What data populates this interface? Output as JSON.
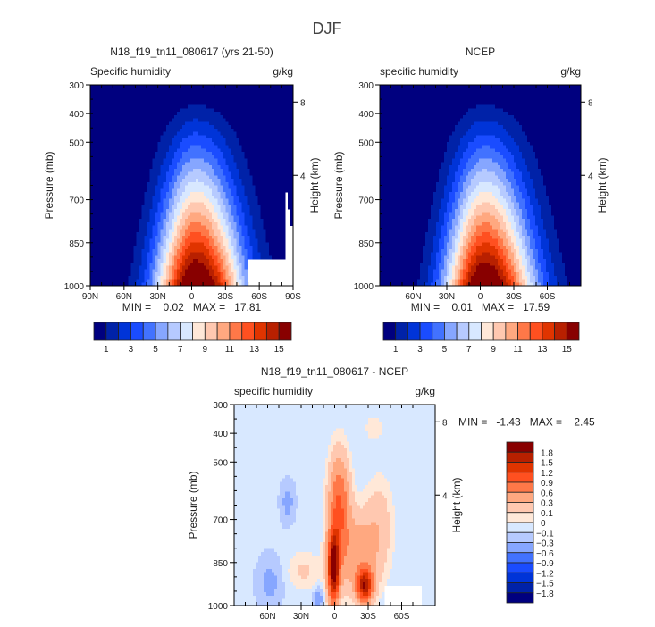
{
  "chart_data": {
    "type": "heatmap",
    "title": "DJF",
    "units": "g/kg",
    "panels": [
      {
        "id": "model",
        "title": "N18_f19_tn11_080617 (yrs 21-50)",
        "subtitle": "Specific humidity",
        "units": "g/kg",
        "ylabel": "Pressure (mb)",
        "y2label": "Height (km)",
        "yticks": [
          300,
          400,
          500,
          700,
          850,
          1000
        ],
        "y2ticks": [
          {
            "label": "8",
            "p": 360
          },
          {
            "label": "4",
            "p": 615
          }
        ],
        "xticks": [
          {
            "lat": 90,
            "label": "90N"
          },
          {
            "lat": 60,
            "label": "60N"
          },
          {
            "lat": 30,
            "label": "30N"
          },
          {
            "lat": 0,
            "label": "0"
          },
          {
            "lat": -30,
            "label": "30S"
          },
          {
            "lat": -60,
            "label": "60S"
          },
          {
            "lat": -90,
            "label": "90S"
          }
        ],
        "xlim": [
          90,
          -90
        ],
        "ylim": [
          300,
          1000
        ],
        "stats": "MIN =    0.02   MAX =   17.81",
        "min": 0.02,
        "max": 17.81
      },
      {
        "id": "obs",
        "title": "NCEP",
        "subtitle": "specific humidity",
        "units": "g/kg",
        "ylabel": "Pressure (mb)",
        "y2label": "Height (km)",
        "yticks": [
          300,
          400,
          500,
          700,
          850,
          1000
        ],
        "y2ticks": [
          {
            "label": "8",
            "p": 360
          },
          {
            "label": "4",
            "p": 615
          }
        ],
        "xticks": [
          {
            "lat": 60,
            "label": "60N"
          },
          {
            "lat": 30,
            "label": "30N"
          },
          {
            "lat": 0,
            "label": "0"
          },
          {
            "lat": -30,
            "label": "30S"
          },
          {
            "lat": -60,
            "label": "60S"
          }
        ],
        "xlim": [
          90,
          -90
        ],
        "ylim": [
          300,
          1000
        ],
        "stats": "MIN =    0.01   MAX =   17.59",
        "min": 0.01,
        "max": 17.59
      },
      {
        "id": "diff",
        "title": "N18_f19_tn11_080617 - NCEP",
        "subtitle": "specific humidity",
        "units": "g/kg",
        "ylabel": "Pressure (mb)",
        "y2label": "Height (km)",
        "yticks": [
          300,
          400,
          500,
          700,
          850,
          1000
        ],
        "y2ticks": [
          {
            "label": "8",
            "p": 360
          },
          {
            "label": "4",
            "p": 615
          }
        ],
        "xticks": [
          {
            "lat": 60,
            "label": "60N"
          },
          {
            "lat": 30,
            "label": "30N"
          },
          {
            "lat": 0,
            "label": "0"
          },
          {
            "lat": -30,
            "label": "30S"
          },
          {
            "lat": -60,
            "label": "60S"
          }
        ],
        "xlim": [
          90,
          -90
        ],
        "ylim": [
          300,
          1000
        ],
        "stats": "MIN =   -1.43   MAX =    2.45",
        "min": -1.43,
        "max": 2.45
      }
    ],
    "abs_levels": [
      1,
      2,
      3,
      4,
      5,
      6,
      7,
      8,
      9,
      10,
      11,
      12,
      13,
      14,
      15
    ],
    "abs_level_labels": [
      "1",
      "3",
      "5",
      "7",
      "9",
      "11",
      "13",
      "15"
    ],
    "abs_colors": [
      "#00007f",
      "#0022a8",
      "#0034d8",
      "#1a4cff",
      "#4272ff",
      "#86a6ff",
      "#b6caff",
      "#d8e8ff",
      "#ffe8d8",
      "#ffc8b0",
      "#ffa880",
      "#ff7848",
      "#ff5020",
      "#e03400",
      "#b82000",
      "#880000"
    ],
    "diff_levels": [
      -1.8,
      -1.5,
      -1.2,
      -0.9,
      -0.6,
      -0.3,
      -0.1,
      0,
      0.1,
      0.3,
      0.6,
      0.9,
      1.2,
      1.5,
      1.8
    ],
    "diff_level_labels": [
      "-1.8",
      "-1.5",
      "-1.2",
      "-0.9",
      "-0.6",
      "-0.3",
      "-0.1",
      "0",
      "0.1",
      "0.3",
      "0.6",
      "0.9",
      "1.2",
      "1.5",
      "1.8"
    ],
    "diff_colors": [
      "#00007f",
      "#0022a8",
      "#0034d8",
      "#1a4cff",
      "#4272ff",
      "#86a6ff",
      "#b6caff",
      "#d8e8ff",
      "#ffe8d8",
      "#ffc8b0",
      "#ffa880",
      "#ff7848",
      "#ff5020",
      "#e03400",
      "#b82000",
      "#880000"
    ]
  }
}
